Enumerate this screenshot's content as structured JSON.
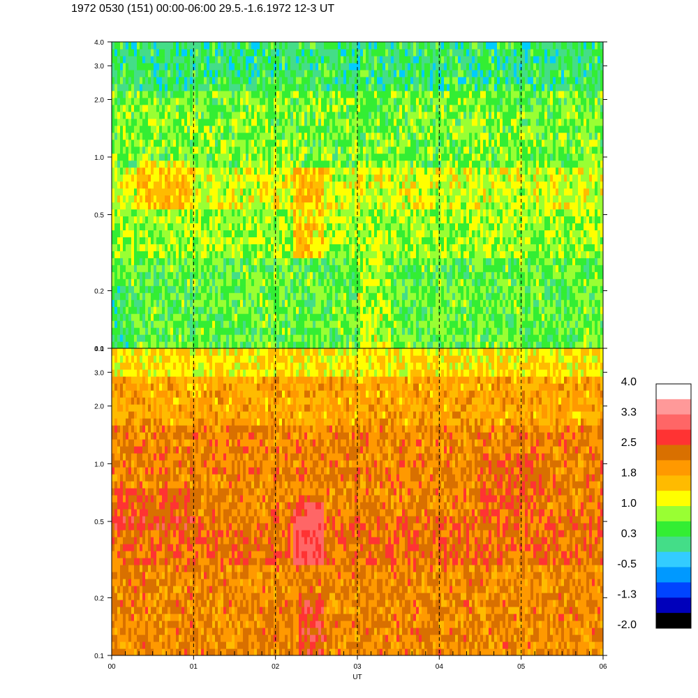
{
  "title": "1972 0530 (151) 00:00-06:00 29.5.-1.6.1972  12-3 UT",
  "chart_data": {
    "type": "heatmap",
    "xlabel": "UT",
    "x_ticks": [
      "00",
      "01",
      "02",
      "03",
      "04",
      "05",
      "06"
    ],
    "xlim": [
      0,
      6
    ],
    "y_scale": "log",
    "panels": [
      {
        "ylim": [
          0.1,
          4.0
        ],
        "y_ticks": [
          "0.1",
          "0.2",
          "0.5",
          "1.0",
          "2.0",
          "3.0",
          "4.0"
        ],
        "dominant_levels": "green/yellow (0.3–1.0) with orange band near 1.0 (1.8)"
      },
      {
        "ylim": [
          0.1,
          4.0
        ],
        "y_ticks": [
          "0.1",
          "0.2",
          "0.5",
          "1.0",
          "2.0",
          "3.0",
          "4.0"
        ],
        "dominant_levels": "orange (1.8–2.5) with red patch (2.5–3.3) near 02:20–02:30, 0.5–0.8"
      }
    ],
    "colorbar": {
      "labels": [
        "4.0",
        "3.3",
        "2.5",
        "1.8",
        "1.0",
        "0.3",
        "-0.5",
        "-1.3",
        "-2.0"
      ],
      "colors": [
        "#ffffff",
        "#ff9999",
        "#ff6666",
        "#ff3333",
        "#d97000",
        "#ff9900",
        "#ffbb00",
        "#ffff00",
        "#99ff33",
        "#33ee33",
        "#44dd88",
        "#33ccff",
        "#0099ff",
        "#0044ff",
        "#0000bb",
        "#000000"
      ]
    }
  }
}
